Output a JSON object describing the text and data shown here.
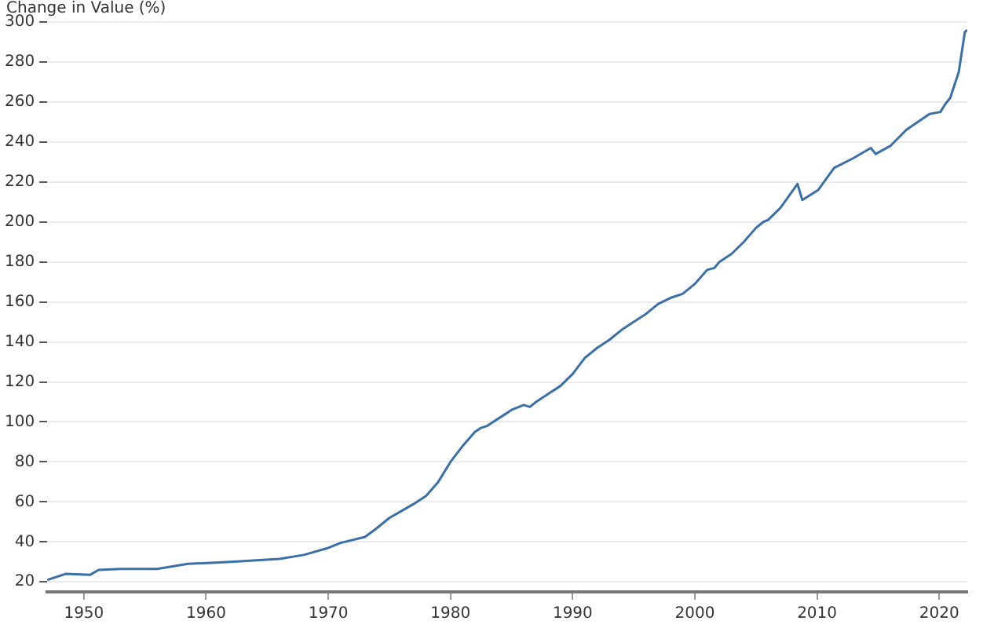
{
  "chart_data": {
    "type": "line",
    "ylabel": "Change in Value (%)",
    "x": [
      1947,
      1948.5,
      1950.5,
      1951.2,
      1953,
      1956,
      1958.5,
      1962,
      1966,
      1968,
      1970,
      1971,
      1973,
      1974,
      1975,
      1976,
      1977,
      1978,
      1979,
      1980,
      1981,
      1982,
      1982.5,
      1983,
      1984,
      1985,
      1986,
      1986.5,
      1987,
      1988,
      1989,
      1990,
      1991,
      1992,
      1993,
      1994,
      1995,
      1996,
      1997,
      1998,
      1999,
      2000,
      2001,
      2001.6,
      2002,
      2003,
      2004,
      2005,
      2005.6,
      2006,
      2007,
      2008.4,
      2008.8,
      2010.1,
      2011.4,
      2013,
      2014.4,
      2014.8,
      2016,
      2017.3,
      2019.2,
      2020.1,
      2020.5,
      2020.9,
      2021.6,
      2022.1,
      2022.3
    ],
    "series": [
      {
        "color": "#3a6fa8",
        "values": [
          21,
          24,
          23.5,
          26,
          26.5,
          26.5,
          29,
          30,
          31.5,
          33.5,
          37,
          39.5,
          42.5,
          47,
          52,
          55.5,
          59,
          63,
          70,
          80,
          88,
          95,
          97,
          98,
          102,
          106,
          108.5,
          107.5,
          110,
          114,
          118,
          124,
          132,
          137,
          141,
          146,
          150,
          154,
          159,
          162,
          164,
          169,
          176,
          177,
          180,
          184,
          190,
          197,
          200,
          201,
          207,
          219,
          211,
          216,
          227,
          232,
          237,
          234,
          238,
          246,
          254,
          255,
          259,
          262,
          275,
          295,
          296
        ]
      }
    ],
    "xlim": [
      1947,
      2022.3
    ],
    "xticks": [
      1950,
      1960,
      1970,
      1980,
      1990,
      2000,
      2010,
      2020
    ],
    "ylim": [
      15,
      300
    ],
    "yticks": [
      20,
      40,
      60,
      80,
      100,
      120,
      140,
      160,
      180,
      200,
      220,
      240,
      260,
      280,
      300
    ],
    "grid": "y",
    "legend": false,
    "marker": "none",
    "line_style": "solid"
  }
}
